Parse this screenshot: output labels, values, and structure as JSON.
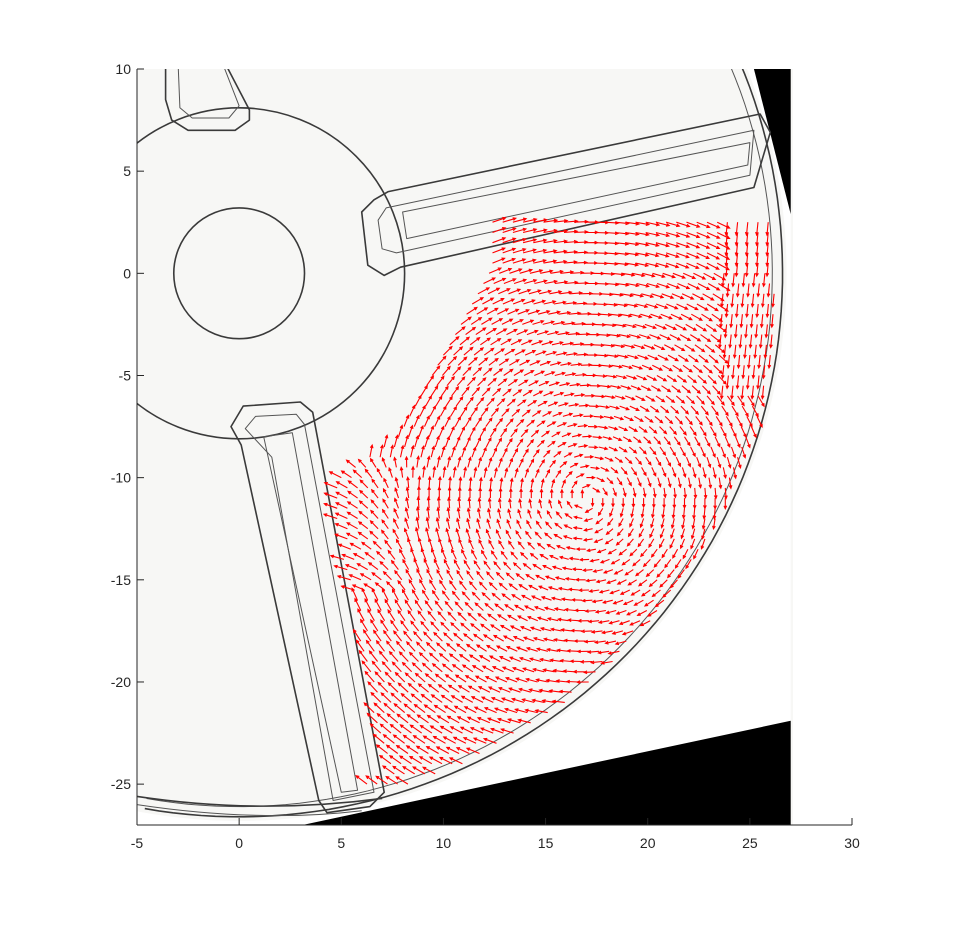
{
  "chart_data": {
    "type": "quiver",
    "title": "",
    "xlabel": "",
    "ylabel": "",
    "xlim": [
      -5,
      30
    ],
    "ylim": [
      -27,
      10
    ],
    "xticks": [
      "-5",
      "0",
      "5",
      "10",
      "15",
      "20",
      "25",
      "30"
    ],
    "yticks": [
      "10",
      "5",
      "0",
      "-5",
      "-10",
      "-15",
      "-20",
      "-25"
    ],
    "grid": false,
    "legend": "none",
    "background": "grayscale photograph of a rotor disk with hub (center 0,0; rings r=3.2 and r=8) and three radial slots",
    "field": {
      "description": "velocity vectors over the region below the upper slot (y < 2.5), right of x = 2.3, inside disk radius 26.5",
      "color": "#ff0000",
      "grid_step": 0.5,
      "vortex_center": [
        17,
        -11
      ],
      "sample_vectors": [
        {
          "x": 25.5,
          "y": 0,
          "u": -0.1,
          "v": -1.4
        },
        {
          "x": 20,
          "y": -20,
          "u": -1.3,
          "v": -0.6
        },
        {
          "x": 8,
          "y": -25,
          "u": -1.6,
          "v": 0.3
        },
        {
          "x": 5,
          "y": -17,
          "u": 0.2,
          "v": 1.3
        },
        {
          "x": 3,
          "y": -12,
          "u": -2.2,
          "v": -0.6
        },
        {
          "x": 15,
          "y": 0,
          "u": 1.3,
          "v": 0.3
        }
      ]
    }
  }
}
